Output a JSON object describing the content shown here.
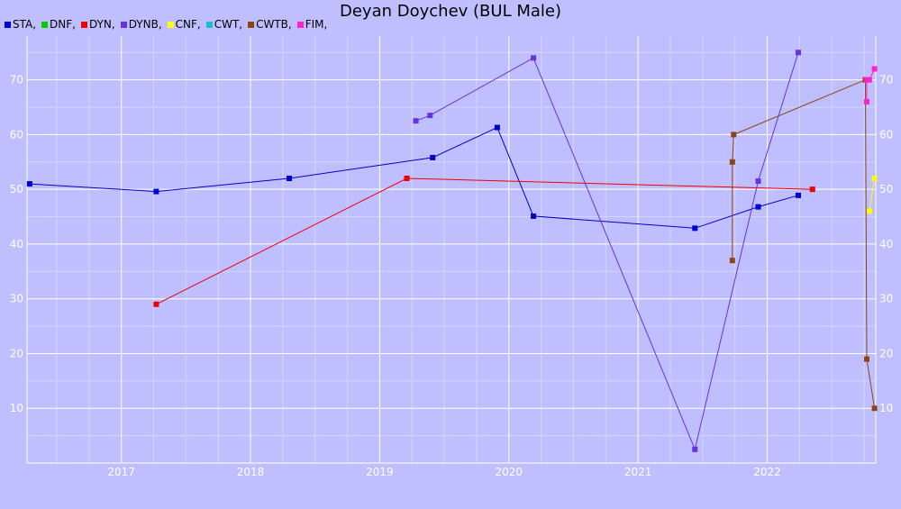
{
  "chart_data": {
    "type": "line",
    "title": "Deyan Doychev (BUL Male)",
    "xlabel": "",
    "ylabel": "",
    "xlim": [
      2016.27,
      2022.84
    ],
    "ylim": [
      0,
      78
    ],
    "x_ticks": [
      "2017",
      "2018",
      "2019",
      "2020",
      "2021",
      "2022"
    ],
    "y_ticks": [
      10,
      20,
      30,
      40,
      50,
      60,
      70
    ],
    "grid": true,
    "legend_position": "top-left",
    "legend": [
      {
        "label": "STA,",
        "color": "#0000cc"
      },
      {
        "label": "DNF,",
        "color": "#00cc00"
      },
      {
        "label": "DYN,",
        "color": "#ee0000"
      },
      {
        "label": "DYNB,",
        "color": "#6633dd"
      },
      {
        "label": "CNF,",
        "color": "#ffff00"
      },
      {
        "label": "CWT,",
        "color": "#22bbcc"
      },
      {
        "label": "CWTB,",
        "color": "#8b4513"
      },
      {
        "label": "FIM,",
        "color": "#ff22cc"
      }
    ],
    "series": [
      {
        "name": "STA",
        "color": "#0000cc",
        "points": [
          [
            2016.29,
            51
          ],
          [
            2017.27,
            49.6
          ],
          [
            2018.3,
            52
          ],
          [
            2019.41,
            55.8
          ],
          [
            2019.91,
            61.3
          ],
          [
            2020.19,
            45.1
          ],
          [
            2021.44,
            42.9
          ],
          [
            2021.93,
            46.8
          ],
          [
            2022.24,
            48.9
          ]
        ]
      },
      {
        "name": "DYN",
        "color": "#ee0000",
        "points": [
          [
            2017.27,
            29
          ],
          [
            2019.21,
            52
          ],
          [
            2022.35,
            50
          ]
        ]
      },
      {
        "name": "DYNB",
        "color": "#6633dd",
        "points": [
          [
            2019.28,
            62.5
          ],
          [
            2019.39,
            63.5
          ],
          [
            2020.19,
            74
          ],
          [
            2021.44,
            2.5
          ],
          [
            2021.93,
            51.5
          ],
          [
            2022.24,
            75
          ]
        ]
      },
      {
        "name": "CNF",
        "color": "#ffff00",
        "points": [
          [
            2022.79,
            46
          ],
          [
            2022.83,
            52
          ]
        ]
      },
      {
        "name": "CWTB",
        "color": "#8b4513",
        "points": [
          [
            2021.73,
            37
          ],
          [
            2021.73,
            55
          ],
          [
            2021.74,
            60
          ],
          [
            2022.76,
            70
          ],
          [
            2022.77,
            19
          ],
          [
            2022.83,
            10
          ]
        ]
      },
      {
        "name": "FIM",
        "color": "#ff22cc",
        "points": [
          [
            2022.77,
            66
          ],
          [
            2022.77,
            70
          ],
          [
            2022.79,
            70
          ],
          [
            2022.83,
            72
          ]
        ]
      }
    ]
  }
}
